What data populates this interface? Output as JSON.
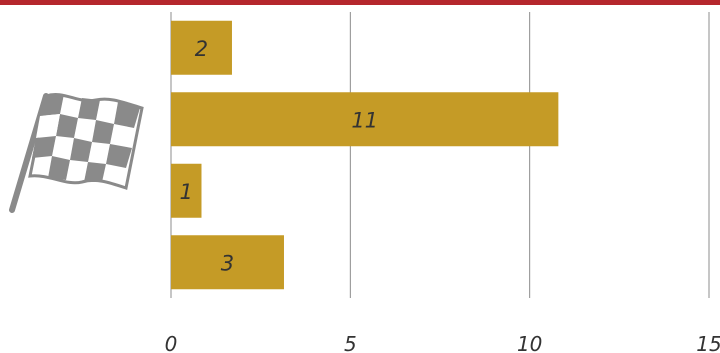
{
  "colors": {
    "bar": "#c59b26",
    "gridline": "#8c8c8c",
    "accent_bar": "#b5272d",
    "flag": "#8a8a8a",
    "text": "#333333"
  },
  "icons": {
    "flag": "checkered-flag-icon"
  },
  "chart_data": {
    "type": "bar",
    "orientation": "horizontal",
    "categories": [
      "",
      "",
      "",
      ""
    ],
    "values": [
      2,
      11,
      1,
      3
    ],
    "data_labels": [
      "2",
      "11",
      "1",
      "3"
    ],
    "bar_values_estimated": [
      1.7,
      10.8,
      0.85,
      3.15
    ],
    "xlim": [
      0,
      15
    ],
    "x_ticks": [
      "0",
      "5",
      "10",
      "15"
    ],
    "title": "",
    "xlabel": "",
    "ylabel": "",
    "grid": "vertical"
  }
}
